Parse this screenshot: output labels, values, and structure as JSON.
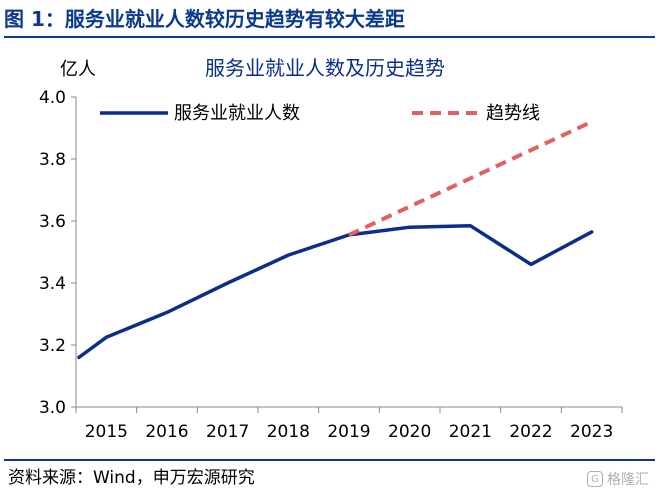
{
  "figure_title": "图 1：服务业就业人数较历史趋势有较大差距",
  "source_text": "资料来源：Wind，申万宏源研究",
  "watermark": {
    "icon": "g-icon",
    "text": "格隆汇"
  },
  "colors": {
    "title": "#0b3a8c",
    "series": "#0b2e8a",
    "trend": "#e36060",
    "axis": "#888888"
  },
  "chart_data": {
    "type": "line",
    "title": "服务业就业人数及历史趋势",
    "ylabel": "亿人",
    "xlabel": "",
    "x_ticks": [
      "2015",
      "2016",
      "2017",
      "2018",
      "2019",
      "2020",
      "2021",
      "2022",
      "2023"
    ],
    "y_ticks": [
      "3.0",
      "3.2",
      "3.4",
      "3.6",
      "3.8",
      "4.0"
    ],
    "ylim": [
      3.0,
      4.0
    ],
    "grid": false,
    "legend_position": "top",
    "series": [
      {
        "name": "服务业就业人数",
        "style": "solid",
        "x": [
          2014.55,
          2015,
          2016,
          2017,
          2018,
          2019,
          2020,
          2021,
          2022,
          2023
        ],
        "y": [
          3.16,
          3.225,
          3.305,
          3.4,
          3.49,
          3.555,
          3.58,
          3.585,
          3.46,
          3.565
        ]
      },
      {
        "name": "趋势线",
        "style": "dashed",
        "x": [
          2019,
          2023
        ],
        "y": [
          3.555,
          3.92
        ]
      }
    ]
  }
}
